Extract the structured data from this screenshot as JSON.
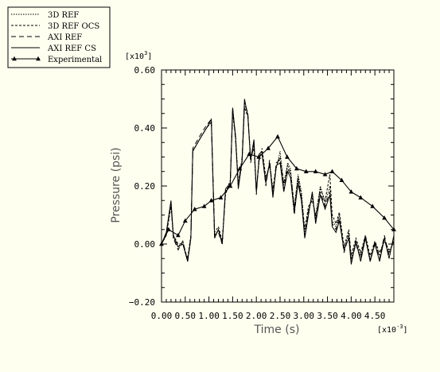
{
  "chart_data": {
    "type": "line",
    "xlabel": "Time (s)",
    "ylabel": "Pressure (psi)",
    "x_multiplier": "[x10",
    "x_multiplier_exp": "-3",
    "x_multiplier_close": "]",
    "y_multiplier": "[x10",
    "y_multiplier_exp": "3",
    "y_multiplier_close": "]",
    "xlim": [
      0.0,
      4.9
    ],
    "ylim": [
      -0.2,
      0.6
    ],
    "x_ticks": [
      0.0,
      0.5,
      1.0,
      1.5,
      2.0,
      2.5,
      3.0,
      3.5,
      4.0,
      4.5
    ],
    "x_tick_labels": [
      "0.00",
      "0.50",
      "1.00",
      "1.50",
      "2.00",
      "2.50",
      "3.00",
      "3.50",
      "4.00",
      "4.50"
    ],
    "y_ticks": [
      -0.2,
      0.0,
      0.2,
      0.4,
      0.6
    ],
    "y_tick_labels": [
      "−0.20",
      "0.00",
      "0.20",
      "0.40",
      "0.60"
    ],
    "legend_position": "top-left",
    "grid": false,
    "series": [
      {
        "name": "3D REF",
        "style": "dotted",
        "points": [
          [
            0.0,
            0.0
          ],
          [
            0.1,
            0.03
          ],
          [
            0.2,
            0.14
          ],
          [
            0.25,
            0.02
          ],
          [
            0.35,
            -0.01
          ],
          [
            0.45,
            0.01
          ],
          [
            0.55,
            -0.06
          ],
          [
            0.62,
            0.03
          ],
          [
            0.66,
            0.32
          ],
          [
            0.8,
            0.36
          ],
          [
            0.95,
            0.4
          ],
          [
            1.05,
            0.42
          ],
          [
            1.12,
            0.03
          ],
          [
            1.2,
            0.05
          ],
          [
            1.28,
            0.0
          ],
          [
            1.35,
            0.18
          ],
          [
            1.45,
            0.21
          ],
          [
            1.5,
            0.46
          ],
          [
            1.56,
            0.38
          ],
          [
            1.62,
            0.2
          ],
          [
            1.7,
            0.28
          ],
          [
            1.75,
            0.48
          ],
          [
            1.82,
            0.45
          ],
          [
            1.88,
            0.29
          ],
          [
            1.95,
            0.34
          ],
          [
            2.0,
            0.18
          ],
          [
            2.06,
            0.3
          ],
          [
            2.12,
            0.32
          ],
          [
            2.2,
            0.22
          ],
          [
            2.28,
            0.28
          ],
          [
            2.35,
            0.18
          ],
          [
            2.42,
            0.26
          ],
          [
            2.5,
            0.32
          ],
          [
            2.58,
            0.2
          ],
          [
            2.66,
            0.28
          ],
          [
            2.72,
            0.26
          ],
          [
            2.8,
            0.12
          ],
          [
            2.88,
            0.24
          ],
          [
            2.95,
            0.18
          ],
          [
            3.02,
            0.04
          ],
          [
            3.1,
            0.12
          ],
          [
            3.18,
            0.16
          ],
          [
            3.25,
            0.09
          ],
          [
            3.35,
            0.2
          ],
          [
            3.45,
            0.14
          ],
          [
            3.55,
            0.2
          ],
          [
            3.6,
            0.08
          ],
          [
            3.68,
            0.06
          ],
          [
            3.75,
            0.1
          ],
          [
            3.85,
            -0.02
          ],
          [
            3.95,
            0.04
          ],
          [
            4.0,
            -0.05
          ],
          [
            4.1,
            0.01
          ],
          [
            4.2,
            -0.04
          ],
          [
            4.3,
            0.02
          ],
          [
            4.4,
            -0.05
          ],
          [
            4.5,
            0.0
          ],
          [
            4.6,
            -0.04
          ],
          [
            4.7,
            0.02
          ],
          [
            4.8,
            -0.03
          ],
          [
            4.9,
            0.01
          ]
        ]
      },
      {
        "name": "3D REF OCS",
        "style": "dashed-short",
        "points": [
          [
            0.0,
            0.0
          ],
          [
            0.1,
            0.03
          ],
          [
            0.2,
            0.13
          ],
          [
            0.25,
            0.03
          ],
          [
            0.35,
            0.0
          ],
          [
            0.45,
            0.0
          ],
          [
            0.55,
            -0.05
          ],
          [
            0.62,
            0.03
          ],
          [
            0.66,
            0.32
          ],
          [
            0.8,
            0.36
          ],
          [
            0.95,
            0.4
          ],
          [
            1.05,
            0.42
          ],
          [
            1.12,
            0.04
          ],
          [
            1.2,
            0.06
          ],
          [
            1.28,
            0.01
          ],
          [
            1.35,
            0.17
          ],
          [
            1.45,
            0.22
          ],
          [
            1.5,
            0.45
          ],
          [
            1.56,
            0.37
          ],
          [
            1.62,
            0.21
          ],
          [
            1.7,
            0.29
          ],
          [
            1.75,
            0.47
          ],
          [
            1.82,
            0.44
          ],
          [
            1.88,
            0.3
          ],
          [
            1.95,
            0.33
          ],
          [
            2.0,
            0.19
          ],
          [
            2.06,
            0.29
          ],
          [
            2.12,
            0.33
          ],
          [
            2.2,
            0.23
          ],
          [
            2.28,
            0.27
          ],
          [
            2.35,
            0.19
          ],
          [
            2.42,
            0.27
          ],
          [
            2.5,
            0.3
          ],
          [
            2.58,
            0.21
          ],
          [
            2.66,
            0.27
          ],
          [
            2.72,
            0.25
          ],
          [
            2.8,
            0.13
          ],
          [
            2.88,
            0.23
          ],
          [
            2.95,
            0.17
          ],
          [
            3.02,
            0.05
          ],
          [
            3.1,
            0.13
          ],
          [
            3.18,
            0.15
          ],
          [
            3.25,
            0.1
          ],
          [
            3.35,
            0.19
          ],
          [
            3.45,
            0.15
          ],
          [
            3.55,
            0.24
          ],
          [
            3.6,
            0.1
          ],
          [
            3.68,
            0.07
          ],
          [
            3.75,
            0.11
          ],
          [
            3.85,
            -0.01
          ],
          [
            3.95,
            0.05
          ],
          [
            4.0,
            -0.04
          ],
          [
            4.1,
            0.02
          ],
          [
            4.2,
            -0.03
          ],
          [
            4.3,
            0.03
          ],
          [
            4.4,
            -0.04
          ],
          [
            4.5,
            0.01
          ],
          [
            4.6,
            -0.03
          ],
          [
            4.7,
            0.01
          ],
          [
            4.8,
            -0.02
          ],
          [
            4.9,
            0.0
          ]
        ]
      },
      {
        "name": "AXI REF",
        "style": "dashed-long",
        "points": [
          [
            0.0,
            0.0
          ],
          [
            0.1,
            0.04
          ],
          [
            0.2,
            0.14
          ],
          [
            0.25,
            0.02
          ],
          [
            0.35,
            -0.02
          ],
          [
            0.45,
            0.01
          ],
          [
            0.55,
            -0.06
          ],
          [
            0.62,
            0.02
          ],
          [
            0.66,
            0.33
          ],
          [
            0.8,
            0.37
          ],
          [
            0.95,
            0.41
          ],
          [
            1.05,
            0.43
          ],
          [
            1.12,
            0.03
          ],
          [
            1.2,
            0.04
          ],
          [
            1.28,
            0.0
          ],
          [
            1.35,
            0.18
          ],
          [
            1.45,
            0.2
          ],
          [
            1.5,
            0.47
          ],
          [
            1.56,
            0.36
          ],
          [
            1.62,
            0.2
          ],
          [
            1.7,
            0.3
          ],
          [
            1.75,
            0.49
          ],
          [
            1.82,
            0.45
          ],
          [
            1.88,
            0.28
          ],
          [
            1.95,
            0.35
          ],
          [
            2.0,
            0.17
          ],
          [
            2.06,
            0.31
          ],
          [
            2.12,
            0.32
          ],
          [
            2.2,
            0.2
          ],
          [
            2.28,
            0.29
          ],
          [
            2.35,
            0.17
          ],
          [
            2.42,
            0.28
          ],
          [
            2.5,
            0.29
          ],
          [
            2.58,
            0.19
          ],
          [
            2.66,
            0.26
          ],
          [
            2.72,
            0.24
          ],
          [
            2.8,
            0.1
          ],
          [
            2.88,
            0.22
          ],
          [
            2.95,
            0.16
          ],
          [
            3.02,
            0.03
          ],
          [
            3.1,
            0.11
          ],
          [
            3.18,
            0.17
          ],
          [
            3.25,
            0.08
          ],
          [
            3.35,
            0.18
          ],
          [
            3.45,
            0.13
          ],
          [
            3.55,
            0.18
          ],
          [
            3.6,
            0.07
          ],
          [
            3.68,
            0.05
          ],
          [
            3.75,
            0.09
          ],
          [
            3.85,
            -0.03
          ],
          [
            3.95,
            0.03
          ],
          [
            4.0,
            -0.06
          ],
          [
            4.1,
            0.0
          ],
          [
            4.2,
            -0.05
          ],
          [
            4.3,
            0.03
          ],
          [
            4.4,
            -0.06
          ],
          [
            4.5,
            0.01
          ],
          [
            4.6,
            -0.05
          ],
          [
            4.7,
            0.03
          ],
          [
            4.8,
            -0.04
          ],
          [
            4.9,
            0.02
          ]
        ]
      },
      {
        "name": "AXI REF CS",
        "style": "solid",
        "points": [
          [
            0.0,
            0.0
          ],
          [
            0.1,
            0.04
          ],
          [
            0.2,
            0.15
          ],
          [
            0.25,
            0.03
          ],
          [
            0.35,
            -0.01
          ],
          [
            0.45,
            0.0
          ],
          [
            0.55,
            -0.06
          ],
          [
            0.62,
            0.02
          ],
          [
            0.66,
            0.32
          ],
          [
            0.8,
            0.36
          ],
          [
            0.95,
            0.4
          ],
          [
            1.05,
            0.43
          ],
          [
            1.12,
            0.02
          ],
          [
            1.2,
            0.05
          ],
          [
            1.28,
            0.0
          ],
          [
            1.35,
            0.19
          ],
          [
            1.45,
            0.21
          ],
          [
            1.5,
            0.47
          ],
          [
            1.56,
            0.37
          ],
          [
            1.62,
            0.19
          ],
          [
            1.7,
            0.29
          ],
          [
            1.75,
            0.5
          ],
          [
            1.82,
            0.44
          ],
          [
            1.88,
            0.29
          ],
          [
            1.95,
            0.36
          ],
          [
            2.0,
            0.18
          ],
          [
            2.06,
            0.3
          ],
          [
            2.12,
            0.31
          ],
          [
            2.2,
            0.21
          ],
          [
            2.28,
            0.28
          ],
          [
            2.35,
            0.16
          ],
          [
            2.42,
            0.27
          ],
          [
            2.5,
            0.28
          ],
          [
            2.58,
            0.18
          ],
          [
            2.66,
            0.25
          ],
          [
            2.72,
            0.23
          ],
          [
            2.8,
            0.11
          ],
          [
            2.88,
            0.21
          ],
          [
            2.95,
            0.15
          ],
          [
            3.02,
            0.02
          ],
          [
            3.1,
            0.1
          ],
          [
            3.18,
            0.18
          ],
          [
            3.25,
            0.07
          ],
          [
            3.35,
            0.17
          ],
          [
            3.45,
            0.12
          ],
          [
            3.55,
            0.17
          ],
          [
            3.6,
            0.06
          ],
          [
            3.68,
            0.04
          ],
          [
            3.75,
            0.08
          ],
          [
            3.85,
            -0.02
          ],
          [
            3.95,
            0.02
          ],
          [
            4.0,
            -0.07
          ],
          [
            4.1,
            0.01
          ],
          [
            4.2,
            -0.06
          ],
          [
            4.3,
            0.02
          ],
          [
            4.4,
            -0.06
          ],
          [
            4.5,
            0.0
          ],
          [
            4.6,
            -0.06
          ],
          [
            4.7,
            0.02
          ],
          [
            4.8,
            -0.05
          ],
          [
            4.9,
            0.03
          ]
        ]
      },
      {
        "name": "Experimental",
        "style": "solid-triangles",
        "points": [
          [
            0.0,
            0.0
          ],
          [
            0.15,
            0.05
          ],
          [
            0.35,
            0.03
          ],
          [
            0.5,
            0.08
          ],
          [
            0.7,
            0.12
          ],
          [
            0.9,
            0.13
          ],
          [
            1.05,
            0.15
          ],
          [
            1.25,
            0.16
          ],
          [
            1.45,
            0.2
          ],
          [
            1.65,
            0.26
          ],
          [
            1.85,
            0.31
          ],
          [
            2.05,
            0.3
          ],
          [
            2.25,
            0.33
          ],
          [
            2.45,
            0.37
          ],
          [
            2.65,
            0.3
          ],
          [
            2.85,
            0.26
          ],
          [
            3.05,
            0.25
          ],
          [
            3.25,
            0.25
          ],
          [
            3.45,
            0.24
          ],
          [
            3.6,
            0.25
          ],
          [
            3.8,
            0.22
          ],
          [
            4.0,
            0.18
          ],
          [
            4.2,
            0.16
          ],
          [
            4.45,
            0.13
          ],
          [
            4.7,
            0.09
          ],
          [
            4.9,
            0.05
          ]
        ]
      }
    ]
  }
}
